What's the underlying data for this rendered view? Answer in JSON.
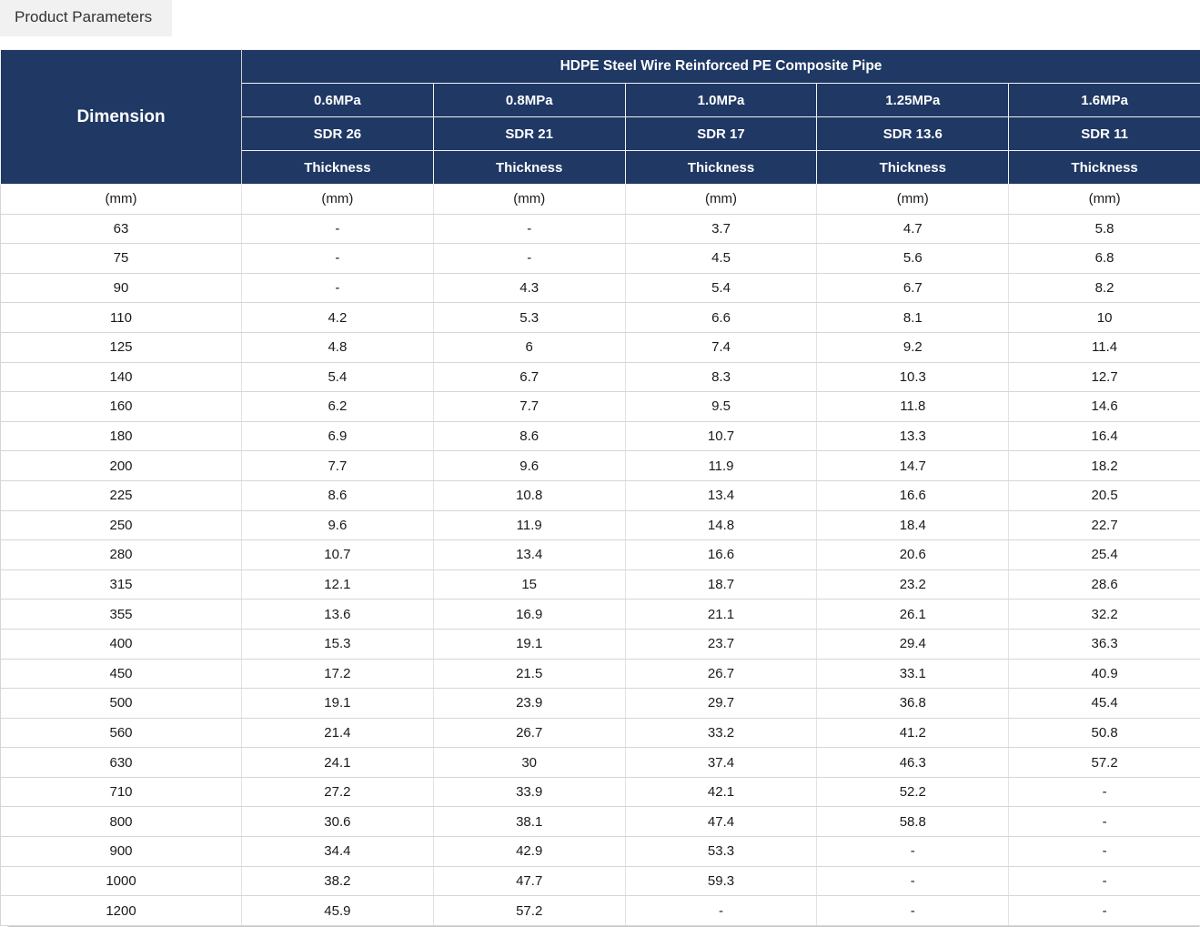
{
  "tab": {
    "label": "Product Parameters"
  },
  "colors": {
    "header_bg": "#1f3864",
    "header_text": "#ffffff",
    "body_border": "#d6d6d6",
    "tab_bg": "#f1f1f1",
    "scrollbar": "#c9c9c9"
  },
  "table": {
    "dimension_label": "Dimension",
    "title": "HDPE Steel Wire Reinforced PE Composite Pipe",
    "pressures": [
      "0.6MPa",
      "0.8MPa",
      "1.0MPa",
      "1.25MPa",
      "1.6MPa"
    ],
    "sdr": [
      "SDR 26",
      "SDR 21",
      "SDR 17",
      "SDR 13.6",
      "SDR 11"
    ],
    "thickness_labels": [
      "Thickness",
      "Thickness",
      "Thickness",
      "Thickness",
      "Thickness"
    ],
    "units": [
      "(mm)",
      "(mm)",
      "(mm)",
      "(mm)",
      "(mm)",
      "(mm)"
    ],
    "rows": [
      [
        "63",
        "-",
        "-",
        "3.7",
        "4.7",
        "5.8"
      ],
      [
        "75",
        "-",
        "-",
        "4.5",
        "5.6",
        "6.8"
      ],
      [
        "90",
        "-",
        "4.3",
        "5.4",
        "6.7",
        "8.2"
      ],
      [
        "110",
        "4.2",
        "5.3",
        "6.6",
        "8.1",
        "10"
      ],
      [
        "125",
        "4.8",
        "6",
        "7.4",
        "9.2",
        "11.4"
      ],
      [
        "140",
        "5.4",
        "6.7",
        "8.3",
        "10.3",
        "12.7"
      ],
      [
        "160",
        "6.2",
        "7.7",
        "9.5",
        "11.8",
        "14.6"
      ],
      [
        "180",
        "6.9",
        "8.6",
        "10.7",
        "13.3",
        "16.4"
      ],
      [
        "200",
        "7.7",
        "9.6",
        "11.9",
        "14.7",
        "18.2"
      ],
      [
        "225",
        "8.6",
        "10.8",
        "13.4",
        "16.6",
        "20.5"
      ],
      [
        "250",
        "9.6",
        "11.9",
        "14.8",
        "18.4",
        "22.7"
      ],
      [
        "280",
        "10.7",
        "13.4",
        "16.6",
        "20.6",
        "25.4"
      ],
      [
        "315",
        "12.1",
        "15",
        "18.7",
        "23.2",
        "28.6"
      ],
      [
        "355",
        "13.6",
        "16.9",
        "21.1",
        "26.1",
        "32.2"
      ],
      [
        "400",
        "15.3",
        "19.1",
        "23.7",
        "29.4",
        "36.3"
      ],
      [
        "450",
        "17.2",
        "21.5",
        "26.7",
        "33.1",
        "40.9"
      ],
      [
        "500",
        "19.1",
        "23.9",
        "29.7",
        "36.8",
        "45.4"
      ],
      [
        "560",
        "21.4",
        "26.7",
        "33.2",
        "41.2",
        "50.8"
      ],
      [
        "630",
        "24.1",
        "30",
        "37.4",
        "46.3",
        "57.2"
      ],
      [
        "710",
        "27.2",
        "33.9",
        "42.1",
        "52.2",
        "-"
      ],
      [
        "800",
        "30.6",
        "38.1",
        "47.4",
        "58.8",
        "-"
      ],
      [
        "900",
        "34.4",
        "42.9",
        "53.3",
        "-",
        "-"
      ],
      [
        "1000",
        "38.2",
        "47.7",
        "59.3",
        "-",
        "-"
      ],
      [
        "1200",
        "45.9",
        "57.2",
        "-",
        "-",
        "-"
      ]
    ]
  }
}
